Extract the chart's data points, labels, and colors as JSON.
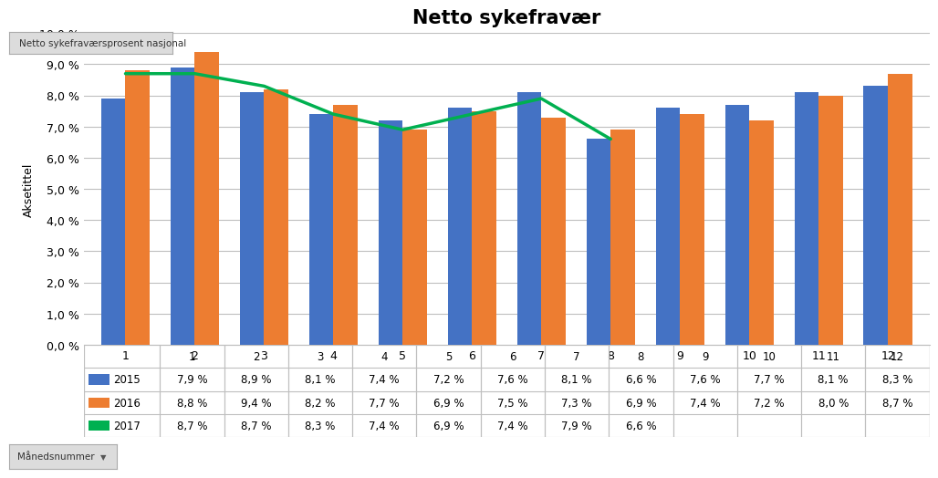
{
  "title": "Netto sykefravær",
  "ylabel": "Aksetittel",
  "categories": [
    1,
    2,
    3,
    4,
    5,
    6,
    7,
    8,
    9,
    10,
    11,
    12
  ],
  "values_2015": [
    7.9,
    8.9,
    8.1,
    7.4,
    7.2,
    7.6,
    8.1,
    6.6,
    7.6,
    7.7,
    8.1,
    8.3
  ],
  "values_2016": [
    8.8,
    9.4,
    8.2,
    7.7,
    6.9,
    7.5,
    7.3,
    6.9,
    7.4,
    7.2,
    8.0,
    8.7
  ],
  "values_2017": [
    8.7,
    8.7,
    8.3,
    7.4,
    6.9,
    7.4,
    7.9,
    6.6,
    null,
    null,
    null,
    null
  ],
  "color_2015": "#4472C4",
  "color_2016": "#ED7D31",
  "color_2017": "#00B050",
  "ylim_max": 10.0,
  "ylim_min": 0.0,
  "yticks": [
    0.0,
    1.0,
    2.0,
    3.0,
    4.0,
    5.0,
    6.0,
    7.0,
    8.0,
    9.0,
    10.0
  ],
  "ytick_labels": [
    "0,0 %",
    "1,0 %",
    "2,0 %",
    "3,0 %",
    "4,0 %",
    "5,0 %",
    "6,0 %",
    "7,0 %",
    "8,0 %",
    "9,0 %",
    "10,0 %"
  ],
  "label_2015": "2015",
  "label_2016": "2016",
  "label_2017": "2017",
  "table_2015_values": [
    "7,9 %",
    "8,9 %",
    "8,1 %",
    "7,4 %",
    "7,2 %",
    "7,6 %",
    "8,1 %",
    "6,6 %",
    "7,6 %",
    "7,7 %",
    "8,1 %",
    "8,3 %"
  ],
  "table_2016_values": [
    "8,8 %",
    "9,4 %",
    "8,2 %",
    "7,7 %",
    "6,9 %",
    "7,5 %",
    "7,3 %",
    "6,9 %",
    "7,4 %",
    "7,2 %",
    "8,0 %",
    "8,7 %"
  ],
  "table_2017_values": [
    "8,7 %",
    "8,7 %",
    "8,3 %",
    "7,4 %",
    "6,9 %",
    "7,4 %",
    "7,9 %",
    "6,6 %",
    "",
    "",
    "",
    ""
  ],
  "button_text": "Netto sykefraværsprosent nasjonal",
  "dropdown_text": "Månedsnummer",
  "bg_color": "#FFFFFF",
  "plot_bg_color": "#FFFFFF",
  "grid_color": "#BFBFBF",
  "title_fontsize": 15,
  "axis_label_fontsize": 9,
  "tick_fontsize": 9,
  "table_fontsize": 8.5
}
